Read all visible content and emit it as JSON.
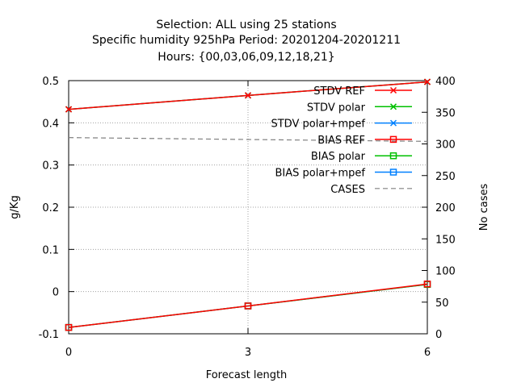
{
  "title_lines": [
    "Selection: ALL using    25 stations",
    "Specific humidity 925hPa   Period: 20201204-20201211",
    "Hours: {00,03,06,09,12,18,21}"
  ],
  "chart_data": {
    "type": "line",
    "xlabel": "Forecast length",
    "ylabel": "g/Kg",
    "y2label": "No cases",
    "x": [
      0,
      3,
      6
    ],
    "x_ticks": [
      "0",
      "3",
      "6"
    ],
    "xlim": [
      0,
      6
    ],
    "ylim": [
      -0.1,
      0.5
    ],
    "y_ticks": [
      "-0.1",
      "0",
      "0.1",
      "0.2",
      "0.3",
      "0.4",
      "0.5"
    ],
    "y2lim": [
      0,
      400
    ],
    "y2_ticks": [
      "0",
      "50",
      "100",
      "150",
      "200",
      "250",
      "300",
      "350",
      "400"
    ],
    "grid": true,
    "legend_position": "top-right",
    "series": [
      {
        "name": "STDV REF",
        "axis": "y",
        "color": "#ff0000",
        "marker": "x",
        "values": [
          0.432,
          0.465,
          0.497
        ]
      },
      {
        "name": "STDV polar",
        "axis": "y",
        "color": "#00c000",
        "marker": "x",
        "values": [
          0.432,
          0.465,
          0.497
        ]
      },
      {
        "name": "STDV polar+mpef",
        "axis": "y",
        "color": "#0080ff",
        "marker": "x",
        "values": [
          0.432,
          0.465,
          0.497
        ]
      },
      {
        "name": "BIAS REF",
        "axis": "y",
        "color": "#ff0000",
        "marker": "square",
        "values": [
          -0.085,
          -0.034,
          0.018
        ]
      },
      {
        "name": "BIAS polar",
        "axis": "y",
        "color": "#00c000",
        "marker": "square",
        "values": [
          -0.085,
          -0.034,
          0.017
        ]
      },
      {
        "name": "BIAS polar+mpef",
        "axis": "y",
        "color": "#0080ff",
        "marker": "square",
        "values": [
          -0.085,
          -0.034,
          0.017
        ]
      },
      {
        "name": "CASES",
        "axis": "y2",
        "color": "#808080",
        "marker": "none",
        "dashed": true,
        "values": [
          310,
          307,
          304
        ]
      }
    ]
  }
}
